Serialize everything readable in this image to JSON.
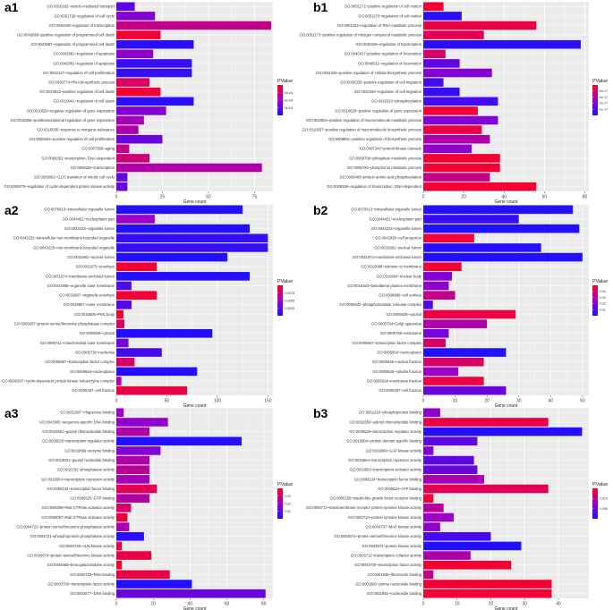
{
  "colors": {
    "low": "#ff0022",
    "mid": "#9b00c8",
    "high": "#1e10ff",
    "panel_bg": "#ebebeb",
    "grid": "#ffffff"
  },
  "chart_data": [
    {
      "panel": "a1",
      "type": "bar",
      "xlabel": "Gene count",
      "legend_title": "PValue",
      "xticks": [
        0,
        25,
        50,
        75
      ],
      "xlim": [
        0,
        85
      ],
      "legend_ticks": [
        "6e-04",
        "4e-04",
        "2e-04"
      ],
      "categories": [
        "GO:0016192~vesicle-mediated transport",
        "GO:0051726~regulation of cell cycle",
        "GO:0045449~regulation of transcription",
        "GO:0043068~positive regulation of programmed cell death",
        "GO:0043067~regulation of programmed cell death",
        "GO:0042981~regulation of apoptosis",
        "GO:0042981~regulation of apoptosis",
        "GO:0042127~regulation of cell proliferation",
        "GO:0030774~RNA biosynthetic process",
        "GO:0010942~positive regulation of cell death",
        "GO:0010941~regulation of cell death",
        "GO:0010629~negative regulation of gene expression",
        "GO:0010608~posttranscriptional regulation of gene expression",
        "GO:0010035~response to inorganic substance",
        "GO:0008284~positive regulation of cell proliferation",
        "GO:0007568~aging",
        "GO:0006351~transcription, DNA-dependent",
        "GO:0006350~transcription",
        "GO:0000082~G1/S transition of mitotic cell cycle",
        "GO:0000079~regulation of cyclin-dependent protein kinase activity"
      ],
      "values": [
        10,
        21,
        84,
        24,
        42,
        20,
        41,
        41,
        18,
        24,
        42,
        27,
        15,
        12,
        25,
        7,
        18,
        79,
        6,
        6
      ],
      "color_values": [
        0.75,
        0.6,
        0.3,
        0.05,
        0.95,
        0.55,
        0.9,
        0.9,
        0.2,
        0.05,
        0.95,
        0.6,
        0.45,
        0.4,
        0.7,
        0.3,
        0.25,
        0.4,
        0.7,
        0.7
      ]
    },
    {
      "panel": "b1",
      "type": "bar",
      "xlabel": "Gene count",
      "legend_title": "PValue",
      "xticks": [
        0,
        20,
        40,
        60,
        80
      ],
      "xlim": [
        0,
        82
      ],
      "legend_ticks": [
        "6e-17",
        "4e-17",
        "2e-17",
        "1e-17"
      ],
      "categories": [
        "GO:0051272~positive regulation of cell motion",
        "GO:0051270~regulation of cell motion",
        "GO:0051252~regulation of RNA metabolic process",
        "GO:0051173~positive regulation of nitrogen compound metabolic process",
        "GO:0045449~regulation of transcription",
        "GO:0040017~positive regulation of locomotion",
        "GO:0040012~regulation of locomotion",
        "GO:0031328~positive regulation of cellular biosynthetic process",
        "GO:0030335~positive regulation of cell migration",
        "GO:0030334~regulation of cell migration",
        "GO:0016310~phosphorylation",
        "GO:0010628~positive regulation of gene expression",
        "GO:0010604~positive regulation of macromolecule metabolic process",
        "GO:0010557~positive regulation of macromolecule biosynthetic process",
        "GO:0009891~positive regulation of biosynthetic process",
        "GO:0007243~protein kinase cascade",
        "GO:0006796~phosphate metabolic process",
        "GO:0006793~phosphorus metabolic process",
        "GO:0006468~protein amino acid phosphorylation",
        "GO:0006355~regulation of transcription, DNA-dependent"
      ],
      "values": [
        10,
        19,
        56,
        30,
        78,
        11,
        18,
        34,
        10,
        18,
        37,
        27,
        37,
        29,
        33,
        24,
        38,
        38,
        33,
        56
      ],
      "color_values": [
        0.05,
        0.95,
        0.1,
        0.15,
        0.95,
        0.2,
        0.75,
        0.6,
        0.85,
        0.9,
        0.85,
        0.05,
        0.6,
        0.1,
        0.4,
        0.55,
        0.05,
        0.05,
        0.3,
        0.05
      ]
    },
    {
      "panel": "a2",
      "type": "bar",
      "xlabel": "Gene count",
      "legend_title": "PValue",
      "xticks": [
        0,
        50,
        100,
        150
      ],
      "xlim": [
        0,
        155
      ],
      "legend_ticks": [
        "0.0075",
        "0.0050",
        "0.0025"
      ],
      "categories": [
        "GO:0070013~intracellular organelle lumen",
        "GO:0044451~nucleoplasm part",
        "GO:0043233~organelle lumen",
        "GO:0043232~intracellular non-membrane-bounded organelle",
        "GO:0043228~non-membrane-bounded organelle",
        "GO:0031981~nuclear lumen",
        "GO:0031975~envelope",
        "GO:0031974~membrane-enclosed lumen",
        "GO:0031968~organelle outer membrane",
        "GO:0031967~organelle envelope",
        "GO:0019867~outer membrane",
        "GO:0016605~PML body",
        "GO:0008287~protein serine/threonine phosphatase complex",
        "GO:0005829~cytosol",
        "GO:0005741~mitochondrial outer membrane",
        "GO:0005730~nucleolus",
        "GO:0005667~transcription factor complex",
        "GO:0005654~nucleoplasm",
        "GO:0000307~cyclin-dependent protein kinase holoenzyme complex",
        "GO:0000267~cell fraction"
      ],
      "values": [
        125,
        38,
        132,
        150,
        150,
        110,
        40,
        132,
        15,
        40,
        15,
        7,
        8,
        95,
        12,
        45,
        18,
        80,
        5,
        70
      ],
      "color_values": [
        0.98,
        0.5,
        0.98,
        0.9,
        0.9,
        0.98,
        0.05,
        0.98,
        0.8,
        0.05,
        0.8,
        0.05,
        0.2,
        0.98,
        0.65,
        0.85,
        0.2,
        0.98,
        0.35,
        0.1
      ]
    },
    {
      "panel": "b2",
      "type": "bar",
      "xlabel": "Gene count",
      "legend_title": "PValue",
      "xticks": [
        0,
        10,
        20,
        30,
        40,
        50
      ],
      "xlim": [
        0,
        52
      ],
      "legend_ticks": [
        "0.04",
        "0.03",
        "0.02",
        "0.01"
      ],
      "categories": [
        "GO:0070013~intracellular organelle lumen",
        "GO:0044451~nucleoplasm part",
        "GO:0043233~organelle lumen",
        "GO:0042995~cell projection",
        "GO:0031981~nuclear lumen",
        "GO:0031974~membrane-enclosed lumen",
        "GO:0016998~extrinsic to membrane",
        "GO:0016604~nuclear body",
        "GO:0016323~basolateral plasma membrane",
        "GO:0009986~cell surface",
        "GO:0005942~phosphoinositide 3-kinase complex",
        "GO:0005829~cytosol",
        "GO:0005794~Golgi apparatus",
        "GO:0005768~endosome",
        "GO:0005667~transcription factor complex",
        "GO:0005654~nucleoplasm",
        "GO:0005635~nuclear fraction",
        "GO:0005625~soluble fraction",
        "GO:0005624~membrane fraction",
        "GO:0000267~cell fraction"
      ],
      "values": [
        47,
        30,
        49,
        16,
        37,
        50,
        12,
        9,
        8,
        10,
        3,
        29,
        20,
        8,
        7,
        26,
        19,
        11,
        19,
        26
      ],
      "color_values": [
        0.98,
        0.9,
        0.98,
        0.05,
        0.98,
        0.98,
        0.05,
        0.6,
        0.55,
        0.3,
        0.8,
        0.1,
        0.4,
        0.65,
        0.2,
        0.98,
        0.2,
        0.5,
        0.1,
        0.7
      ]
    },
    {
      "panel": "a3",
      "type": "bar",
      "xlabel": "Gene count",
      "legend_title": "PValue",
      "xticks": [
        0,
        20,
        40,
        60,
        80
      ],
      "xlim": [
        0,
        85
      ],
      "legend_ticks": [
        "0.03",
        "0.02",
        "0.01"
      ],
      "categories": [
        "GO:0051087~chaperone binding",
        "GO:0043565~sequence-specific DNA binding",
        "GO:0032561~guanyl ribonucleotide binding",
        "GO:0030528~transcription regulator activity",
        "GO:0019899~enzyme binding",
        "GO:0019001~guanyl nucleotide binding",
        "GO:0016791~phosphatase activity",
        "GO:0016564~transcription repressor activity",
        "GO:0008134~transcription factor binding",
        "GO:0005525~GTP binding",
        "GO:0005099~Ras GTPase activator activity",
        "GO:0005097~Rab GTPase activator activity",
        "GO:0004722~protein serine/threonine phosphatase activity",
        "GO:0004721~phosphoprotein phosphatase activity",
        "GO:0004705~JUN kinase activity",
        "GO:0004674~protein serine/threonine kinase activity",
        "GO:0004565~beta-galactosidase activity",
        "GO:0003723~RNA binding",
        "GO:0003700~transcription factor activity",
        "GO:0003677~DNA binding"
      ],
      "values": [
        4,
        28,
        18,
        68,
        24,
        18,
        18,
        18,
        22,
        18,
        8,
        6,
        7,
        15,
        3,
        19,
        3,
        29,
        41,
        81
      ],
      "color_values": [
        0.5,
        0.55,
        0.4,
        0.98,
        0.6,
        0.4,
        0.35,
        0.45,
        0.15,
        0.4,
        0.2,
        0.1,
        0.45,
        0.95,
        0.1,
        0.1,
        0.05,
        0.1,
        0.98,
        0.7
      ]
    },
    {
      "panel": "b3",
      "type": "bar",
      "xlabel": "Gene count",
      "legend_title": "PValue",
      "xticks": [
        0,
        10,
        20,
        30,
        40
      ],
      "xlim": [
        0,
        49
      ],
      "legend_ticks": [
        "0.010",
        "0.005"
      ],
      "categories": [
        "GO:0051219~phosphoprotein binding",
        "GO:0032559~adenyl ribonucleotide binding",
        "GO:0030528~transcription regulator activity",
        "GO:0019904~protein domain specific binding",
        "GO:0019809~GAP kinase activity",
        "GO:0016564~transcription repressor activity",
        "GO:0016563~transcription activator activity",
        "GO:0008134~transcription factor binding",
        "GO:0005524~ATP binding",
        "GO:0005159~insulin-like growth factor receptor binding",
        "GO:0004714~transmembrane receptor protein tyrosine kinase activity",
        "GO:0004713~protein tyrosine kinase activity",
        "GO:0004707~MAP kinase activity",
        "GO:0004674~protein serine/threonine kinase activity",
        "GO:0004672~protein kinase activity",
        "GO:0003712~transcription cofactor activity",
        "GO:0003700~transcription factor activity",
        "GO:0001948~fibronectin binding",
        "GO:0001883~purine nucleoside binding",
        "GO:0001882~nucleoside binding"
      ],
      "values": [
        5,
        37,
        47,
        16,
        3,
        15,
        16,
        18,
        37,
        3,
        6,
        9,
        5,
        20,
        29,
        14,
        26,
        3,
        38,
        38
      ],
      "color_values": [
        0.55,
        0.1,
        0.98,
        0.75,
        0.6,
        0.75,
        0.7,
        0.45,
        0.15,
        0.05,
        0.35,
        0.5,
        0.55,
        0.85,
        0.98,
        0.4,
        0.05,
        0.3,
        0.05,
        0.05
      ]
    }
  ]
}
